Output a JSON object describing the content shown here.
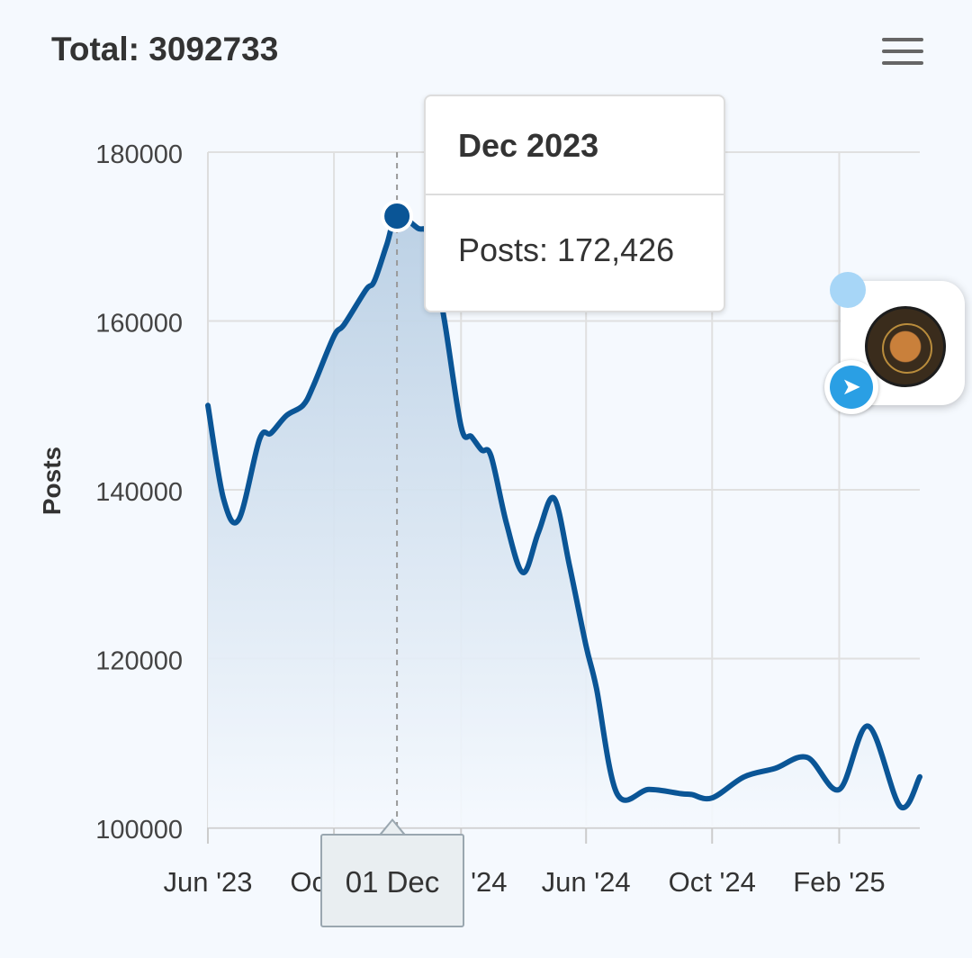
{
  "header": {
    "total_label": "Total: 3092733"
  },
  "tooltip": {
    "title": "Dec 2023",
    "line": "Posts: 172,426"
  },
  "crosshair_label": "01 Dec",
  "colors": {
    "line": "#0a5596",
    "fill_top": "#b9cfe4",
    "grid": "#e0e0e0",
    "text": "#333333"
  },
  "chart_data": {
    "type": "area",
    "ylabel": "Posts",
    "ylim": [
      100000,
      180000
    ],
    "y_ticks": [
      100000,
      120000,
      140000,
      160000,
      180000
    ],
    "x_tick_labels": [
      "Jun '23",
      "Oct '23",
      "Feb '24",
      "Jun '24",
      "Oct '24",
      "Feb '25"
    ],
    "x_tick_dates": [
      "2023-06-01",
      "2023-10-01",
      "2024-02-01",
      "2024-06-01",
      "2024-10-01",
      "2025-02-01"
    ],
    "x_range": [
      "2023-06-01",
      "2025-04-20"
    ],
    "highlight": {
      "date": "2023-12-01",
      "value": 172426
    },
    "series": [
      {
        "name": "Posts",
        "points": [
          [
            "2023-06-01",
            150000
          ],
          [
            "2023-06-16",
            139000
          ],
          [
            "2023-07-01",
            136500
          ],
          [
            "2023-07-21",
            146000
          ],
          [
            "2023-08-01",
            146700
          ],
          [
            "2023-08-16",
            148800
          ],
          [
            "2023-09-01",
            150000
          ],
          [
            "2023-09-11",
            152300
          ],
          [
            "2023-10-01",
            158200
          ],
          [
            "2023-10-11",
            159600
          ],
          [
            "2023-11-01",
            163700
          ],
          [
            "2023-11-09",
            164700
          ],
          [
            "2023-11-21",
            169000
          ],
          [
            "2023-12-01",
            172426
          ],
          [
            "2023-12-21",
            171000
          ],
          [
            "2024-01-01",
            169800
          ],
          [
            "2024-01-16",
            160000
          ],
          [
            "2024-02-01",
            147500
          ],
          [
            "2024-02-11",
            146300
          ],
          [
            "2024-02-21",
            144700
          ],
          [
            "2024-03-01",
            144000
          ],
          [
            "2024-03-16",
            136000
          ],
          [
            "2024-04-01",
            130200
          ],
          [
            "2024-04-16",
            135000
          ],
          [
            "2024-05-01",
            139000
          ],
          [
            "2024-05-16",
            131000
          ],
          [
            "2024-06-01",
            121500
          ],
          [
            "2024-06-11",
            116500
          ],
          [
            "2024-07-01",
            104000
          ],
          [
            "2024-08-01",
            104500
          ],
          [
            "2024-09-01",
            104000
          ],
          [
            "2024-09-11",
            103900
          ],
          [
            "2024-10-01",
            103500
          ],
          [
            "2024-11-01",
            106000
          ],
          [
            "2024-12-01",
            107000
          ],
          [
            "2025-01-01",
            108300
          ],
          [
            "2025-02-01",
            104500
          ],
          [
            "2025-03-01",
            112000
          ],
          [
            "2025-04-01",
            102500
          ],
          [
            "2025-04-20",
            106000
          ]
        ]
      }
    ]
  }
}
